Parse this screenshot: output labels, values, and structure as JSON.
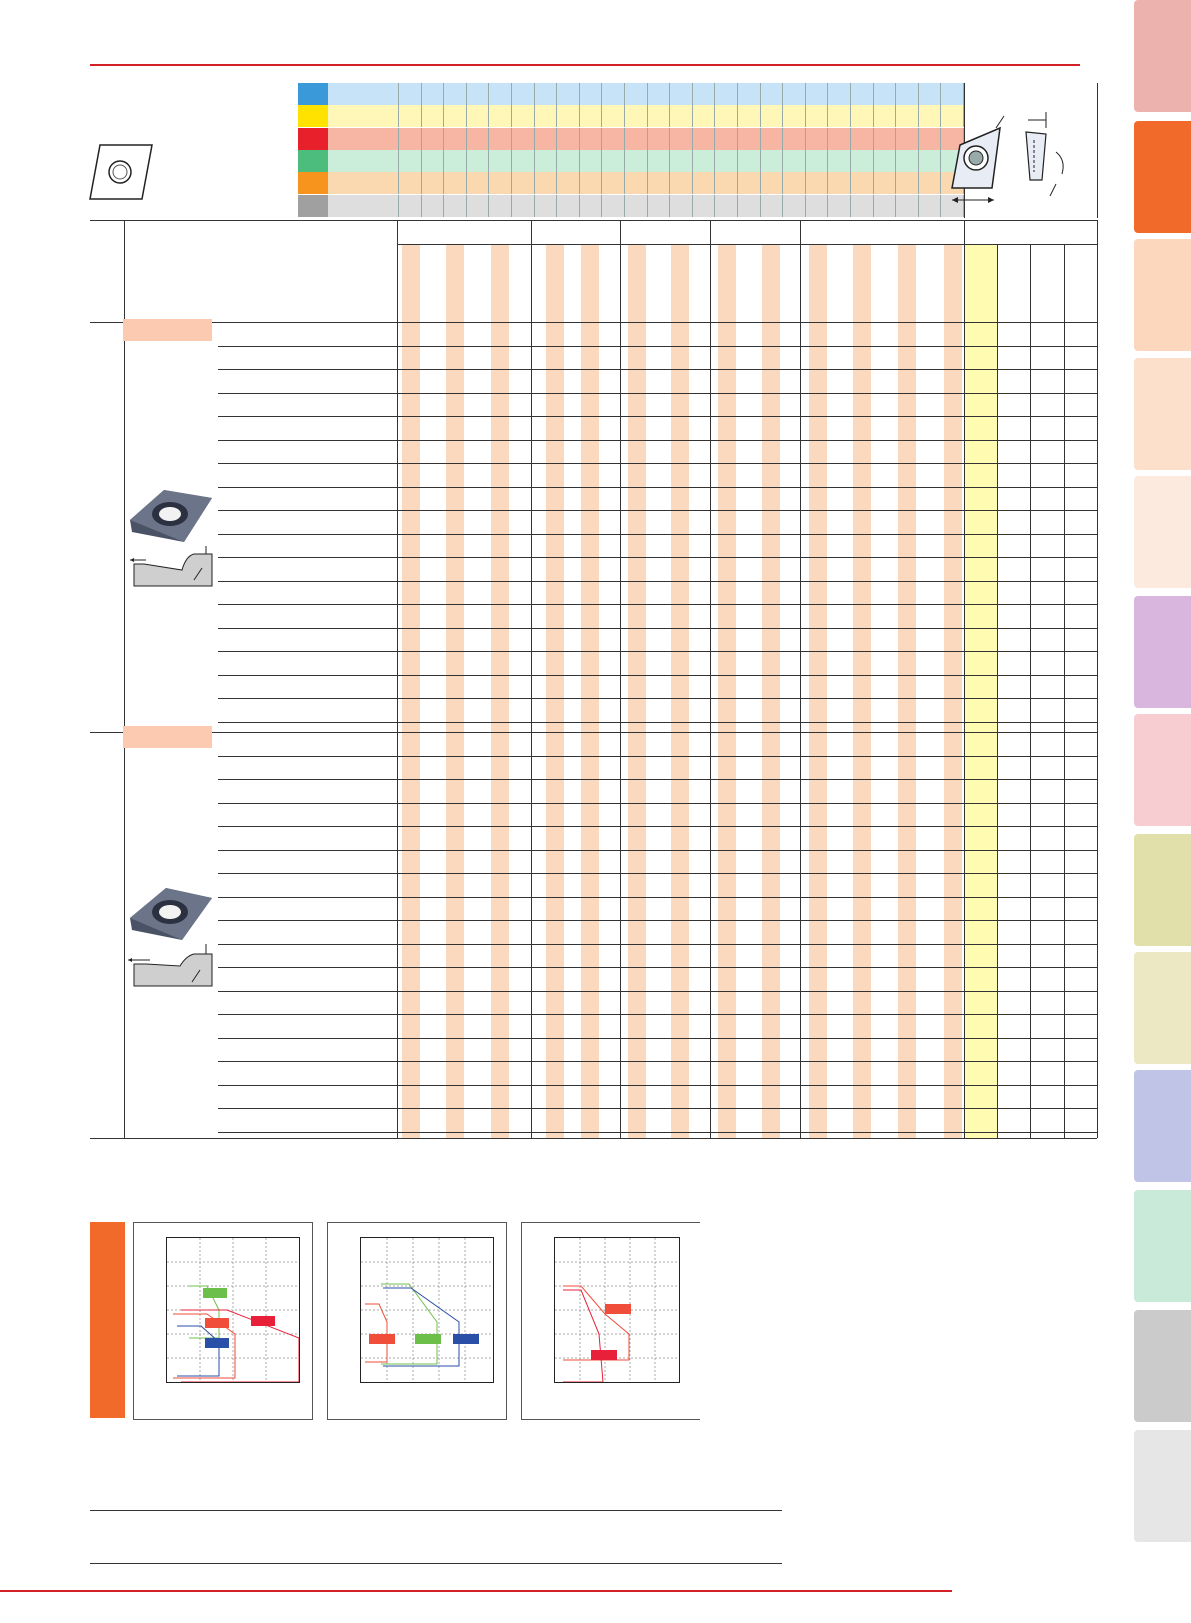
{
  "colors": {
    "accent": "#d42127",
    "section_tab": "#f26a2a",
    "stripe": "#fbd9bf",
    "highlight_col": "#fffbb0",
    "group_label": "#fbcab0",
    "material_keys": [
      "#3a9ad9",
      "#ffe200",
      "#e8202b",
      "#4dbd7d",
      "#f7941d",
      "#a0a0a0"
    ],
    "material_bands": [
      "#c6e3f7",
      "#fff7b8",
      "#f7b5a4",
      "#cbeedb",
      "#fbd9b0",
      "#dedede"
    ]
  },
  "side_tabs": [
    {
      "color": "#ecb3ae"
    },
    {
      "color": "#f26a2a"
    },
    {
      "color": "#fcd6bd"
    },
    {
      "color": "#fde0cc"
    },
    {
      "color": "#fdeadf"
    },
    {
      "color": "#d8b6de"
    },
    {
      "color": "#f8cdd2"
    },
    {
      "color": "#e2e0aa"
    },
    {
      "color": "#ebe8c3"
    },
    {
      "color": "#c0c5e8"
    },
    {
      "color": "#c9ead8"
    },
    {
      "color": "#cbcbcb"
    },
    {
      "color": "#e6e6e6"
    }
  ],
  "icons": {
    "insert_outline": "rhombic-insert-icon",
    "insert_dimension": "insert-dimension-diagram-icon",
    "insert_photo": "insert-photo-icon",
    "chipbreaker_profile": "chipbreaker-profile-icon"
  },
  "table": {
    "group_count": 2,
    "rows_per_group": 17
  },
  "charts": [
    {
      "markers": [
        {
          "color": "#6cc04a"
        },
        {
          "color": "#f04e3a"
        },
        {
          "color": "#e8203a"
        },
        {
          "color": "#2a4fa8"
        }
      ]
    },
    {
      "markers": [
        {
          "color": "#f04e3a"
        },
        {
          "color": "#6cc04a"
        },
        {
          "color": "#2a4fa8"
        }
      ]
    },
    {
      "markers": [
        {
          "color": "#f04e3a"
        },
        {
          "color": "#e8203a"
        }
      ]
    }
  ]
}
